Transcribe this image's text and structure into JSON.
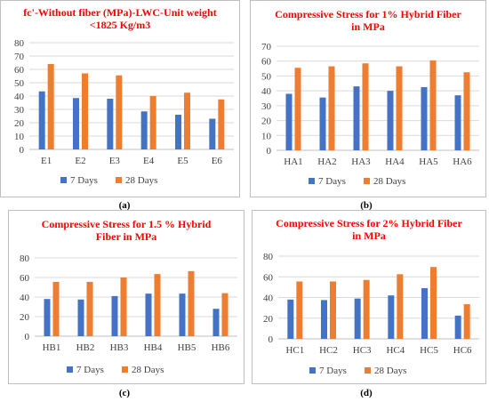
{
  "colors": {
    "series_7": "#4472C4",
    "series_28": "#ED7D31",
    "title": "#FF0000",
    "grid": "#D9D9D9",
    "border": "#BFBFBF",
    "text": "#404040"
  },
  "captions": [
    "(a)",
    "(b)",
    "(c)",
    "(d)"
  ],
  "chart_data": [
    {
      "type": "bar",
      "title_lines": [
        "fc'-Without fiber (MPa)-LWC-Unit weight",
        "<1825 Kg/m3"
      ],
      "categories": [
        "E1",
        "E2",
        "E3",
        "E4",
        "E5",
        "E6"
      ],
      "series": [
        {
          "name": "7 Days",
          "values": [
            43.5,
            38.5,
            38,
            28.5,
            26,
            23
          ]
        },
        {
          "name": "28 Days",
          "values": [
            64,
            57,
            55.5,
            40,
            42.5,
            37.5
          ]
        }
      ],
      "ylim": [
        0,
        80
      ],
      "ytick_step": 10,
      "grid": true,
      "legend": "bottom"
    },
    {
      "type": "bar",
      "title_lines": [
        "Compressive Stress for 1% Hybrid Fiber",
        "in MPa"
      ],
      "categories": [
        "HA1",
        "HA2",
        "HA3",
        "HA4",
        "HA5",
        "HA6"
      ],
      "series": [
        {
          "name": "7 Days",
          "values": [
            38,
            35.5,
            43,
            40,
            42.5,
            37
          ]
        },
        {
          "name": "28 Days",
          "values": [
            55.5,
            56.5,
            58.5,
            56.5,
            60.5,
            52.5
          ]
        }
      ],
      "ylim": [
        0,
        70
      ],
      "ytick_step": 10,
      "grid": true,
      "legend": "bottom"
    },
    {
      "type": "bar",
      "title_lines": [
        "Compressive Stress for 1.5 % Hybrid",
        "Fiber in MPa"
      ],
      "categories": [
        "HB1",
        "HB2",
        "HB3",
        "HB4",
        "HB5",
        "HB6"
      ],
      "series": [
        {
          "name": "7 Days",
          "values": [
            38,
            37.5,
            41,
            43.5,
            43.5,
            28
          ]
        },
        {
          "name": "28 Days",
          "values": [
            55.5,
            55.5,
            60,
            63.5,
            66.5,
            44
          ]
        }
      ],
      "ylim": [
        0,
        80
      ],
      "ytick_step": 20,
      "grid": true,
      "legend": "bottom"
    },
    {
      "type": "bar",
      "title_lines": [
        "Compressive Stress for 2% Hybrid Fiber",
        "in MPa"
      ],
      "categories": [
        "HC1",
        "HC2",
        "HC3",
        "HC4",
        "HC5",
        "HC6"
      ],
      "series": [
        {
          "name": "7 Days",
          "values": [
            38,
            37.5,
            39,
            42,
            49,
            22.5
          ]
        },
        {
          "name": "28 Days",
          "values": [
            55.5,
            55.5,
            57,
            62.5,
            69.5,
            33.5
          ]
        }
      ],
      "ylim": [
        0,
        80
      ],
      "ytick_step": 20,
      "grid": true,
      "legend": "bottom"
    }
  ]
}
